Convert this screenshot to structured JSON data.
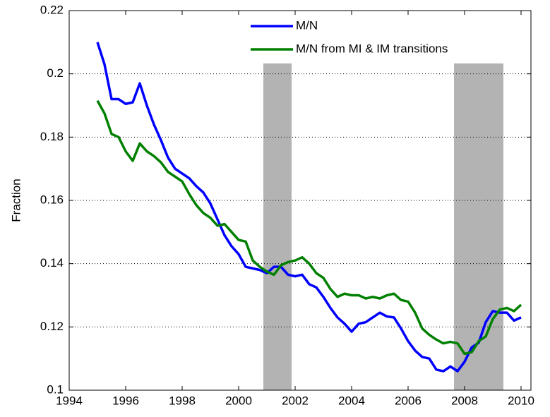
{
  "chart_data": {
    "type": "line",
    "y_label": "Fraction",
    "x": [
      1995,
      1995.25,
      1995.5,
      1995.75,
      1996,
      1996.25,
      1996.5,
      1996.75,
      1997,
      1997.25,
      1997.5,
      1997.75,
      1998,
      1998.25,
      1998.5,
      1998.75,
      1999,
      1999.25,
      1999.5,
      1999.75,
      2000,
      2000.25,
      2000.5,
      2000.75,
      2001,
      2001.25,
      2001.5,
      2001.75,
      2002,
      2002.25,
      2002.5,
      2002.75,
      2003,
      2003.25,
      2003.5,
      2003.75,
      2004,
      2004.25,
      2004.5,
      2004.75,
      2005,
      2005.25,
      2005.5,
      2005.75,
      2006,
      2006.25,
      2006.5,
      2006.75,
      2007,
      2007.25,
      2007.5,
      2007.75,
      2008,
      2008.25,
      2008.5,
      2008.75,
      2009,
      2009.25,
      2009.5,
      2009.75,
      2010
    ],
    "series": [
      {
        "name": "M/N",
        "color": "#0000ff",
        "values": [
          0.21,
          0.203,
          0.192,
          0.192,
          0.1905,
          0.191,
          0.197,
          0.19,
          0.184,
          0.179,
          0.1735,
          0.17,
          0.1685,
          0.167,
          0.1645,
          0.1625,
          0.159,
          0.154,
          0.149,
          0.1455,
          0.143,
          0.139,
          0.1385,
          0.138,
          0.137,
          0.139,
          0.139,
          0.1365,
          0.136,
          0.1365,
          0.1335,
          0.1325,
          0.1295,
          0.126,
          0.123,
          0.121,
          0.1185,
          0.121,
          0.1215,
          0.123,
          0.1245,
          0.1233,
          0.123,
          0.1195,
          0.1155,
          0.1125,
          0.1105,
          0.11,
          0.1065,
          0.106,
          0.1075,
          0.106,
          0.109,
          0.1135,
          0.115,
          0.1215,
          0.125,
          0.1245,
          0.1245,
          0.122,
          0.123
        ]
      },
      {
        "name": "M/N from MI & IM transitions",
        "color": "#008000",
        "values": [
          0.1915,
          0.1875,
          0.181,
          0.18,
          0.1755,
          0.1725,
          0.178,
          0.1755,
          0.174,
          0.172,
          0.169,
          0.1675,
          0.166,
          0.162,
          0.1585,
          0.156,
          0.1545,
          0.152,
          0.1525,
          0.15,
          0.1475,
          0.147,
          0.141,
          0.139,
          0.1375,
          0.1365,
          0.1395,
          0.1405,
          0.141,
          0.142,
          0.14,
          0.137,
          0.1355,
          0.132,
          0.1295,
          0.1305,
          0.13,
          0.13,
          0.129,
          0.1295,
          0.129,
          0.13,
          0.1305,
          0.1285,
          0.128,
          0.1245,
          0.1195,
          0.1175,
          0.116,
          0.1148,
          0.1153,
          0.1148,
          0.1115,
          0.112,
          0.1155,
          0.117,
          0.1225,
          0.1255,
          0.126,
          0.125,
          0.127
        ]
      }
    ],
    "shaded_spans": [
      [
        2000.875,
        2001.875
      ],
      [
        2007.625,
        2009.375
      ]
    ],
    "shade_top": 0.2033,
    "shade_color": "#b3b3b3",
    "xlim": [
      1994,
      2010.35
    ],
    "xticks": [
      1994,
      1996,
      1998,
      2000,
      2002,
      2004,
      2006,
      2008,
      2010
    ],
    "ylim": [
      0.1,
      0.22
    ],
    "yticks": [
      0.1,
      0.12,
      0.14,
      0.16,
      0.18,
      0.2,
      0.22
    ],
    "grid": "y",
    "legend": "upper-center"
  }
}
